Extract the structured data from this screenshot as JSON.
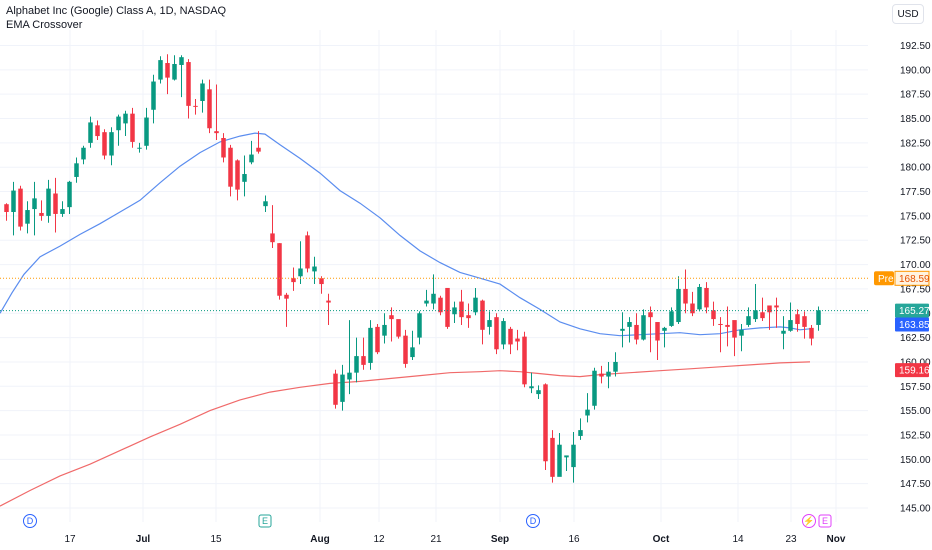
{
  "legend": {
    "title": "Alphabet Inc (Google) Class A, 1D, NASDAQ",
    "indicator": "EMA Crossover"
  },
  "currency_button": "USD",
  "chart_data": {
    "type": "candlestick",
    "y_ticks": [
      "192.50",
      "190.00",
      "187.50",
      "185.00",
      "182.50",
      "180.00",
      "177.50",
      "175.00",
      "172.50",
      "170.00",
      "167.50",
      "165.00",
      "162.50",
      "160.00",
      "157.50",
      "155.00",
      "152.50",
      "150.00",
      "147.50",
      "145.00"
    ],
    "ylim": [
      144.0,
      194.3
    ],
    "x_ticks": [
      {
        "label": "17",
        "bold": false
      },
      {
        "label": "Jul",
        "bold": true
      },
      {
        "label": "15",
        "bold": false
      },
      {
        "label": "Aug",
        "bold": true
      },
      {
        "label": "12",
        "bold": false
      },
      {
        "label": "21",
        "bold": false
      },
      {
        "label": "Sep",
        "bold": true
      },
      {
        "label": "16",
        "bold": false
      },
      {
        "label": "Oct",
        "bold": true
      },
      {
        "label": "14",
        "bold": false
      },
      {
        "label": "23",
        "bold": false
      },
      {
        "label": "Nov",
        "bold": true
      }
    ],
    "candles": [
      [
        176.2,
        175.4,
        176.3,
        174.5
      ],
      [
        175.4,
        177.6,
        178.5,
        173.0
      ],
      [
        177.8,
        173.9,
        178.1,
        173.5
      ],
      [
        174.2,
        175.6,
        176.5,
        173.2
      ],
      [
        175.7,
        176.8,
        178.5,
        173.0
      ],
      [
        175.3,
        175.0,
        176.6,
        174.5
      ],
      [
        175.0,
        177.8,
        178.7,
        174.3
      ],
      [
        177.3,
        175.2,
        178.9,
        173.3
      ],
      [
        175.2,
        175.7,
        176.5,
        174.9
      ],
      [
        175.9,
        178.5,
        178.6,
        175.2
      ],
      [
        179.0,
        180.4,
        181.0,
        178.4
      ],
      [
        180.8,
        182.0,
        182.2,
        180.3
      ],
      [
        182.5,
        184.6,
        185.2,
        182.0
      ],
      [
        184.3,
        183.2,
        184.8,
        182.8
      ],
      [
        183.6,
        181.2,
        183.9,
        180.8
      ],
      [
        181.2,
        183.6,
        184.1,
        180.2
      ],
      [
        183.8,
        185.2,
        185.4,
        182.2
      ],
      [
        184.5,
        185.5,
        185.8,
        183.2
      ],
      [
        185.5,
        182.6,
        186.1,
        182.0
      ],
      [
        182.0,
        182.0,
        182.5,
        181.5
      ],
      [
        182.2,
        185.1,
        186.1,
        181.8
      ],
      [
        185.9,
        188.8,
        189.5,
        184.5
      ],
      [
        189.0,
        191.0,
        191.4,
        188.6
      ],
      [
        190.7,
        189.2,
        191.6,
        187.5
      ],
      [
        189.0,
        190.6,
        191.5,
        188.9
      ],
      [
        190.5,
        191.3,
        191.5,
        187.2
      ],
      [
        190.8,
        186.3,
        191.1,
        185.0
      ],
      [
        186.3,
        186.2,
        187.0,
        185.4
      ],
      [
        186.8,
        188.6,
        189.0,
        185.6
      ],
      [
        188.0,
        184.0,
        189.0,
        183.5
      ],
      [
        183.7,
        183.5,
        188.5,
        182.8
      ],
      [
        183.0,
        181.0,
        183.5,
        180.5
      ],
      [
        182.0,
        178.0,
        182.3,
        177.0
      ],
      [
        180.7,
        177.7,
        180.8,
        176.6
      ],
      [
        178.5,
        179.3,
        181.2,
        177.0
      ],
      [
        180.5,
        181.3,
        182.7,
        180.3
      ],
      [
        182.0,
        181.6,
        183.7,
        181.4
      ],
      [
        176.0,
        176.5,
        177.1,
        175.4
      ],
      [
        173.2,
        172.3,
        176.1,
        171.7
      ],
      [
        172.2,
        166.8,
        172.2,
        166.4
      ],
      [
        166.9,
        166.5,
        167.1,
        163.6
      ],
      [
        168.6,
        168.2,
        169.7,
        167.3
      ],
      [
        168.8,
        169.6,
        172.4,
        168.0
      ],
      [
        173.0,
        169.6,
        173.4,
        169.2
      ],
      [
        169.3,
        169.8,
        170.8,
        168.0
      ],
      [
        168.6,
        168.0,
        168.8,
        167.0
      ],
      [
        166.3,
        166.1,
        167.0,
        163.8
      ],
      [
        158.8,
        155.6,
        159.2,
        155.2
      ],
      [
        155.9,
        158.7,
        159.7,
        155.0
      ],
      [
        158.2,
        158.9,
        164.3,
        156.7
      ],
      [
        158.9,
        160.6,
        162.5,
        157.9
      ],
      [
        160.6,
        159.7,
        162.5,
        159.2
      ],
      [
        159.9,
        163.5,
        164.3,
        159.2
      ],
      [
        163.6,
        161.0,
        163.9,
        160.8
      ],
      [
        162.7,
        163.8,
        165.0,
        161.9
      ],
      [
        164.8,
        164.4,
        165.6,
        162.1
      ],
      [
        164.4,
        162.6,
        163.8,
        162.4
      ],
      [
        162.7,
        159.8,
        163.3,
        159.4
      ],
      [
        160.5,
        161.5,
        163.2,
        160.2
      ],
      [
        162.5,
        165.0,
        165.2,
        161.8
      ],
      [
        166.0,
        166.3,
        167.4,
        165.7
      ],
      [
        166.0,
        167.0,
        169.0,
        165.4
      ],
      [
        166.6,
        165.1,
        166.8,
        164.8
      ],
      [
        167.6,
        163.6,
        166.6,
        163.4
      ],
      [
        164.9,
        165.6,
        166.2,
        164.0
      ],
      [
        166.2,
        164.6,
        167.4,
        163.8
      ],
      [
        164.8,
        164.5,
        166.0,
        163.5
      ],
      [
        165.1,
        166.6,
        167.6,
        164.8
      ],
      [
        166.3,
        163.3,
        166.4,
        161.8
      ],
      [
        163.6,
        164.3,
        165.2,
        162.8
      ],
      [
        164.6,
        161.3,
        165.0,
        160.8
      ],
      [
        161.8,
        164.2,
        164.5,
        161.3
      ],
      [
        163.4,
        161.8,
        163.6,
        160.8
      ],
      [
        162.4,
        162.1,
        163.3,
        161.2
      ],
      [
        162.6,
        157.7,
        163.1,
        157.4
      ],
      [
        157.3,
        157.5,
        158.9,
        156.8
      ],
      [
        156.7,
        157.1,
        157.6,
        156.2
      ],
      [
        157.7,
        149.8,
        157.8,
        148.9
      ],
      [
        152.2,
        148.2,
        153.0,
        147.6
      ],
      [
        148.2,
        151.5,
        152.7,
        148.5
      ],
      [
        150.2,
        150.4,
        150.3,
        148.8
      ],
      [
        149.2,
        151.5,
        152.8,
        147.6
      ],
      [
        152.4,
        153.0,
        154.2,
        152.0
      ],
      [
        154.5,
        155.1,
        156.8,
        153.8
      ],
      [
        155.5,
        159.1,
        159.4,
        155.1
      ],
      [
        158.8,
        158.5,
        159.6,
        157.8
      ],
      [
        158.5,
        159.0,
        160.0,
        157.3
      ],
      [
        159.0,
        160.0,
        161.0,
        158.5
      ],
      [
        163.2,
        163.4,
        165.1,
        161.5
      ],
      [
        163.6,
        164.1,
        164.6,
        162.0
      ],
      [
        163.8,
        162.3,
        165.0,
        161.8
      ],
      [
        162.3,
        164.8,
        165.4,
        162.2
      ],
      [
        165.1,
        164.6,
        165.7,
        161.0
      ],
      [
        164.1,
        162.2,
        162.4,
        160.2
      ],
      [
        163.2,
        163.5,
        163.6,
        161.5
      ],
      [
        163.7,
        165.2,
        165.6,
        163.6
      ],
      [
        164.1,
        167.5,
        168.8,
        163.9
      ],
      [
        167.5,
        166.0,
        169.5,
        165.0
      ],
      [
        166.0,
        165.0,
        167.2,
        164.7
      ],
      [
        165.4,
        167.7,
        168.0,
        165.2
      ],
      [
        167.6,
        165.6,
        168.2,
        165.0
      ],
      [
        165.3,
        164.4,
        166.2,
        163.7
      ],
      [
        163.9,
        163.8,
        164.6,
        161.0
      ],
      [
        163.8,
        163.6,
        165.7,
        161.6
      ],
      [
        164.3,
        162.5,
        164.2,
        160.6
      ],
      [
        162.7,
        163.3,
        163.9,
        161.1
      ],
      [
        163.8,
        164.7,
        165.6,
        163.6
      ],
      [
        164.4,
        165.3,
        168.0,
        164.1
      ],
      [
        165.1,
        164.5,
        166.6,
        164.2
      ],
      [
        165.8,
        165.1,
        165.6,
        163.3
      ],
      [
        165.8,
        165.6,
        166.6,
        163.5
      ],
      [
        162.9,
        163.2,
        164.7,
        161.3
      ],
      [
        163.2,
        164.3,
        166.1,
        163.1
      ],
      [
        164.9,
        163.9,
        165.4,
        163.1
      ],
      [
        164.7,
        163.6,
        165.2,
        162.4
      ],
      [
        163.5,
        162.4,
        163.8,
        161.7
      ],
      [
        163.8,
        165.3,
        165.7,
        163.2
      ]
    ],
    "ema_blue": [
      [
        0,
        165.0
      ],
      [
        12,
        167.1
      ],
      [
        24,
        169.0
      ],
      [
        40,
        170.8
      ],
      [
        60,
        171.9
      ],
      [
        80,
        173.1
      ],
      [
        100,
        174.2
      ],
      [
        120,
        175.4
      ],
      [
        140,
        176.6
      ],
      [
        160,
        178.4
      ],
      [
        180,
        180.1
      ],
      [
        200,
        181.5
      ],
      [
        220,
        182.6
      ],
      [
        240,
        183.2
      ],
      [
        255,
        183.5
      ],
      [
        265,
        183.4
      ],
      [
        280,
        182.3
      ],
      [
        300,
        180.9
      ],
      [
        320,
        179.4
      ],
      [
        340,
        177.6
      ],
      [
        360,
        176.3
      ],
      [
        380,
        174.8
      ],
      [
        400,
        173.0
      ],
      [
        420,
        171.4
      ],
      [
        440,
        170.2
      ],
      [
        460,
        169.2
      ],
      [
        480,
        168.6
      ],
      [
        500,
        168.0
      ],
      [
        520,
        166.6
      ],
      [
        540,
        165.4
      ],
      [
        560,
        164.1
      ],
      [
        580,
        163.4
      ],
      [
        600,
        162.9
      ],
      [
        620,
        162.7
      ],
      [
        640,
        162.8
      ],
      [
        660,
        162.9
      ],
      [
        680,
        163.0
      ],
      [
        700,
        162.8
      ],
      [
        720,
        162.9
      ],
      [
        740,
        163.3
      ],
      [
        760,
        163.5
      ],
      [
        780,
        163.6
      ],
      [
        790,
        163.5
      ],
      [
        800,
        163.3
      ],
      [
        810,
        163.4
      ]
    ],
    "ema_red": [
      [
        0,
        145.2
      ],
      [
        30,
        146.8
      ],
      [
        60,
        148.3
      ],
      [
        90,
        149.5
      ],
      [
        120,
        150.9
      ],
      [
        150,
        152.3
      ],
      [
        180,
        153.6
      ],
      [
        210,
        155.0
      ],
      [
        240,
        156.1
      ],
      [
        270,
        156.9
      ],
      [
        300,
        157.4
      ],
      [
        330,
        157.8
      ],
      [
        360,
        158.0
      ],
      [
        390,
        158.3
      ],
      [
        420,
        158.6
      ],
      [
        450,
        158.9
      ],
      [
        480,
        159.0
      ],
      [
        500,
        159.1
      ],
      [
        520,
        159.0
      ],
      [
        540,
        158.8
      ],
      [
        560,
        158.6
      ],
      [
        580,
        158.5
      ],
      [
        600,
        158.7
      ],
      [
        630,
        158.9
      ],
      [
        660,
        159.1
      ],
      [
        690,
        159.3
      ],
      [
        720,
        159.5
      ],
      [
        750,
        159.7
      ],
      [
        780,
        159.9
      ],
      [
        810,
        160.0
      ]
    ],
    "pre_line_value": 168.59,
    "last_line_value": 165.27,
    "badges": [
      {
        "label": "Pre",
        "value": "168.59",
        "color": "#ff9800"
      },
      {
        "label": "",
        "value": "165.27",
        "color": "#26a69a"
      },
      {
        "label": "",
        "value": "163.85",
        "color": "#2962ff"
      },
      {
        "label": "",
        "value": "159.16",
        "color": "#f23645"
      }
    ],
    "event_markers": [
      {
        "label": "D",
        "color": "#2962ff"
      },
      {
        "label": "E",
        "color": "#26a69a"
      },
      {
        "label": "D",
        "color": "#2962ff"
      },
      {
        "label": "⚡",
        "color": "#e040fb"
      },
      {
        "label": "E",
        "color": "#e040fb"
      }
    ],
    "up_color": "#089981",
    "down_color": "#f23645",
    "ema_blue_color": "#5b8def",
    "ema_red_color": "#f06a6a"
  }
}
